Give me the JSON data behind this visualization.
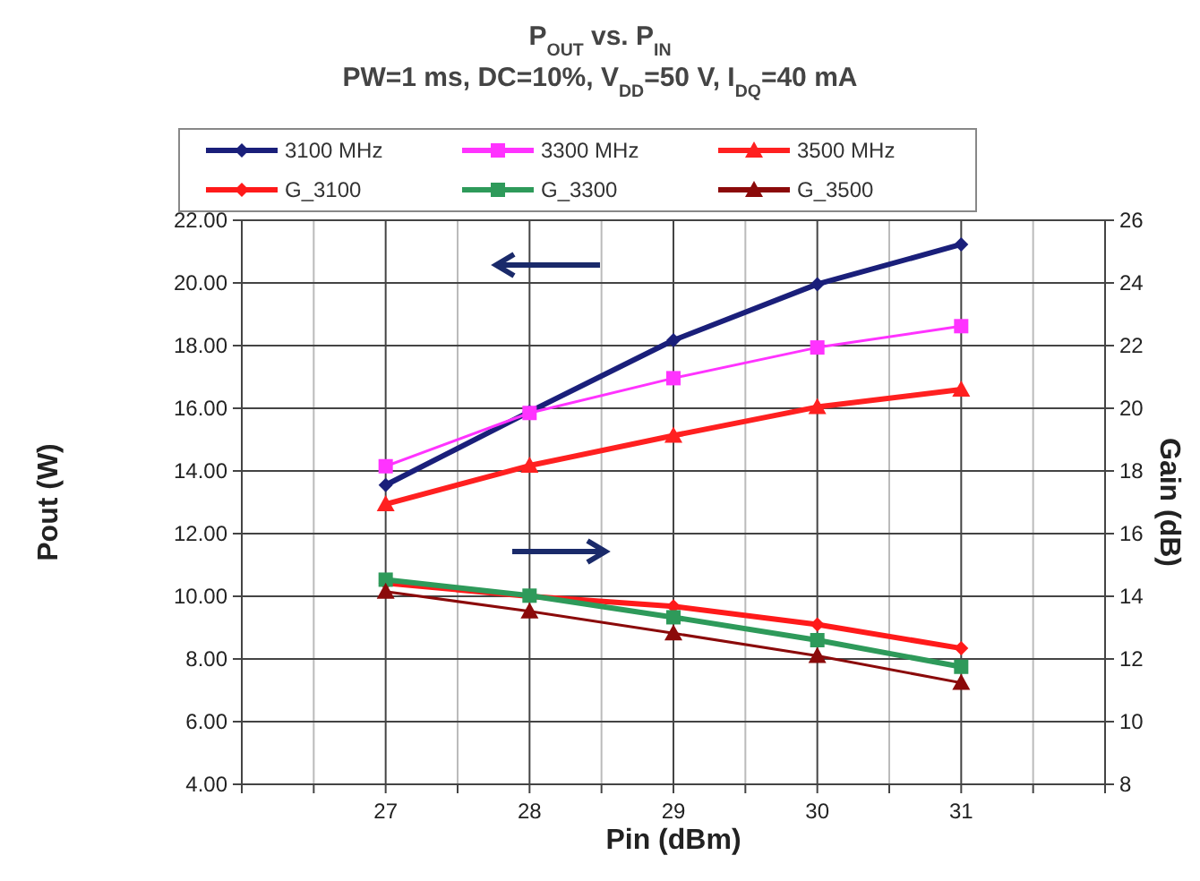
{
  "chart_data": {
    "type": "line",
    "title": "P$_{OUT}$ vs. P$_{IN}$",
    "subtitle": "PW=1 ms, DC=10%, V$_{DD}$=50 V, I$_{DQ}$=40 mA",
    "xlabel": "Pin (dBm)",
    "ylabel": "Pout (W)",
    "y2label": "Gain (dB)",
    "x": [
      27,
      28,
      29,
      30,
      31
    ],
    "xlim": [
      26,
      32
    ],
    "xticks": [
      {
        "value": 26,
        "label": null
      },
      {
        "value": 26.5,
        "label": null
      },
      27,
      {
        "value": 27.5,
        "label": null
      },
      28,
      {
        "value": 28.5,
        "label": null
      },
      29,
      {
        "value": 29.5,
        "label": null
      },
      30,
      {
        "value": 30.5,
        "label": null
      },
      31,
      {
        "value": 31.5,
        "label": null
      },
      {
        "value": 32,
        "label": null
      }
    ],
    "ylim": [
      4,
      22
    ],
    "yticks": [
      {
        "value": 4,
        "label": "4.00"
      },
      {
        "value": 6,
        "label": "6.00"
      },
      {
        "value": 8,
        "label": "8.00"
      },
      {
        "value": 10,
        "label": "10.00"
      },
      {
        "value": 12,
        "label": "12.00"
      },
      {
        "value": 14,
        "label": "14.00"
      },
      {
        "value": 16,
        "label": "16.00"
      },
      {
        "value": 18,
        "label": "18.00"
      },
      {
        "value": 20,
        "label": "20.00"
      },
      {
        "value": 22,
        "label": "22.00"
      }
    ],
    "y2lim": [
      8,
      26
    ],
    "y2ticks": [
      8,
      10,
      12,
      14,
      16,
      18,
      20,
      22,
      24,
      26
    ],
    "grid": true,
    "legend": "top",
    "series": [
      {
        "name": "3100 MHz",
        "color": "#1a1f7a",
        "marker": "diamond",
        "values": [
          13.55,
          15.89,
          18.17,
          19.96,
          21.23
        ]
      },
      {
        "name": "3300 MHz",
        "color": "#ff33ff",
        "marker": "square",
        "values": [
          14.15,
          15.85,
          16.96,
          17.94,
          18.62
        ]
      },
      {
        "name": "3500 MHz",
        "color": "#ff2020",
        "marker": "triangle",
        "values": [
          12.94,
          14.17,
          15.13,
          16.04,
          16.6
        ]
      },
      {
        "name": "G_3100",
        "color": "#ff1a1a",
        "marker": "diamond",
        "axis": "y2",
        "values": [
          14.42,
          14.0,
          13.68,
          13.1,
          12.34
        ]
      },
      {
        "name": "G_3300",
        "color": "#2e9a5a",
        "marker": "square",
        "axis": "y2",
        "values": [
          14.53,
          14.02,
          13.33,
          12.6,
          11.75
        ]
      },
      {
        "name": "G_3500",
        "color": "#8b0a0a",
        "marker": "triangle",
        "axis": "y2",
        "values": [
          14.15,
          13.52,
          12.82,
          12.1,
          11.24
        ]
      }
    ]
  }
}
